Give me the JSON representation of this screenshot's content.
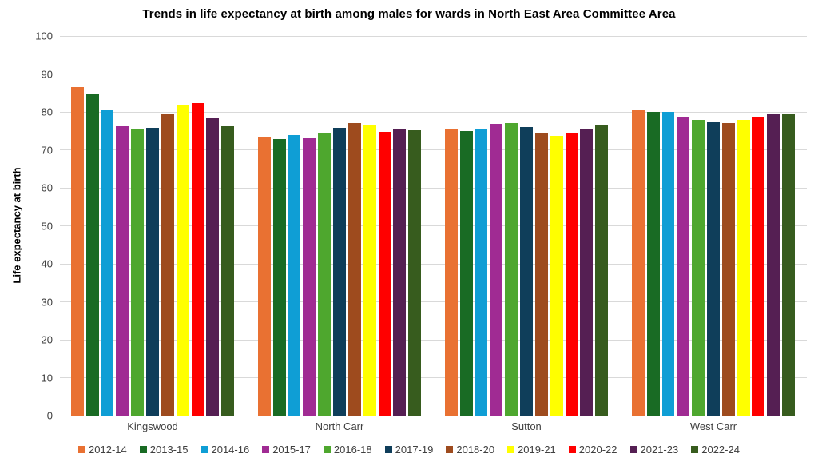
{
  "chart_data": {
    "type": "bar",
    "title": "Trends in life expectancy at birth among males for wards in North East Area Committee Area",
    "xlabel": "",
    "ylabel": "Life expectancy at birth",
    "ylim": [
      0,
      100
    ],
    "ytick_step": 10,
    "grid": true,
    "legend_position": "bottom",
    "gridline_color": "#d9d9d9",
    "categories": [
      "Kingswood",
      "North Carr",
      "Sutton",
      "West Carr"
    ],
    "series": [
      {
        "name": "2012-14",
        "color": "#E97132",
        "values": [
          86.5,
          73.2,
          75.4,
          80.6
        ]
      },
      {
        "name": "2013-15",
        "color": "#196B24",
        "values": [
          84.6,
          72.8,
          75.0,
          80.0
        ]
      },
      {
        "name": "2014-16",
        "color": "#0F9ED5",
        "values": [
          80.6,
          73.8,
          75.6,
          80.0
        ]
      },
      {
        "name": "2015-17",
        "color": "#A02B93",
        "values": [
          76.3,
          73.0,
          76.9,
          78.7
        ]
      },
      {
        "name": "2016-18",
        "color": "#4EA72E",
        "values": [
          75.3,
          74.4,
          77.1,
          77.9
        ]
      },
      {
        "name": "2017-19",
        "color": "#0F3E5A",
        "values": [
          75.7,
          75.8,
          76.1,
          77.3
        ]
      },
      {
        "name": "2018-20",
        "color": "#9E4B1E",
        "values": [
          79.4,
          77.1,
          74.3,
          77.1
        ]
      },
      {
        "name": "2019-21",
        "color": "#FFFF00",
        "values": [
          81.8,
          76.4,
          73.7,
          78.0
        ]
      },
      {
        "name": "2020-22",
        "color": "#FF0000",
        "values": [
          82.4,
          74.7,
          74.5,
          78.7
        ]
      },
      {
        "name": "2021-23",
        "color": "#551F53",
        "values": [
          78.4,
          75.4,
          75.6,
          79.4
        ]
      },
      {
        "name": "2022-24",
        "color": "#375C1E",
        "values": [
          76.2,
          75.2,
          76.6,
          79.6
        ]
      }
    ]
  }
}
